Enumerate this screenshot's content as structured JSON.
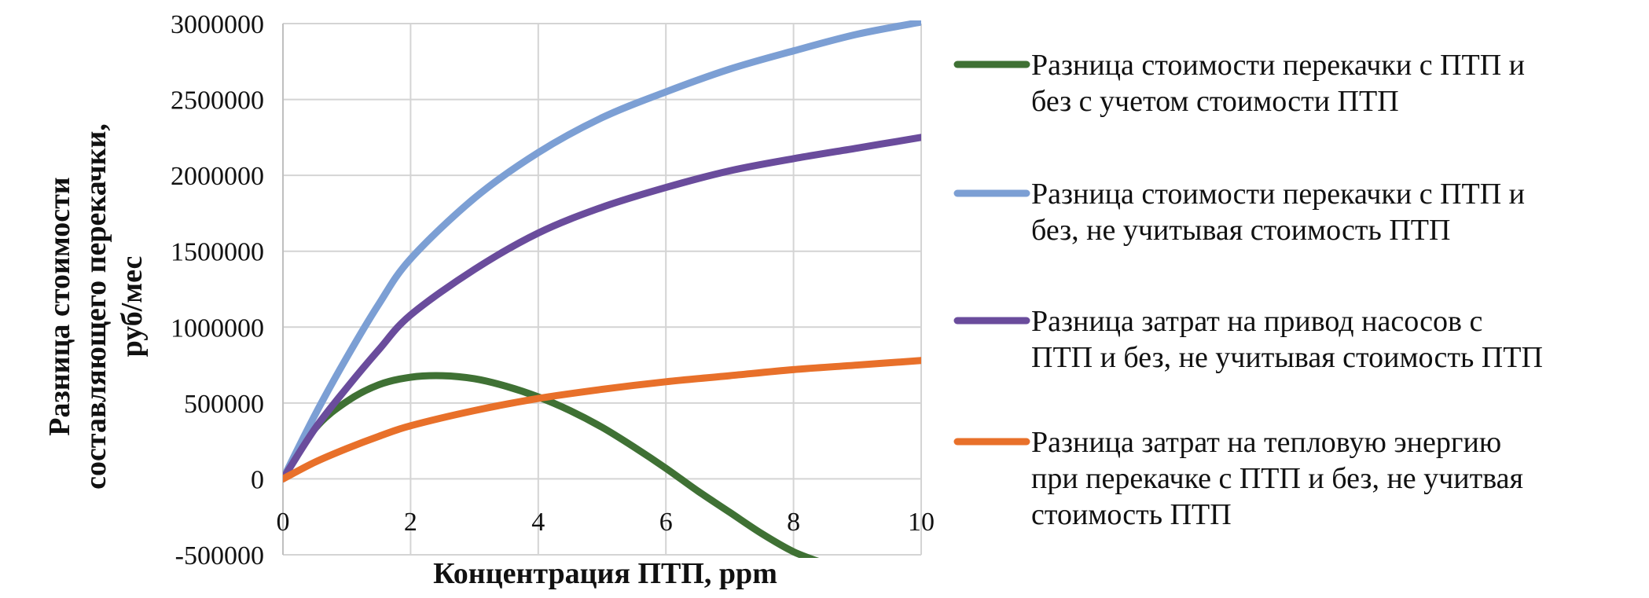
{
  "chart_data": {
    "type": "line",
    "xlabel": "Концентрация ПТП, ppm",
    "ylabel_lines": [
      "Разница стоимости",
      "составляющего перекачки,",
      "руб/мес"
    ],
    "xlim": [
      0,
      10
    ],
    "ylim": [
      -500000,
      3000000
    ],
    "x_ticks": [
      "0",
      "2",
      "4",
      "6",
      "8",
      "10"
    ],
    "y_ticks": [
      "3000000",
      "2500000",
      "2000000",
      "1500000",
      "1000000",
      "500000",
      "0",
      "-500000"
    ],
    "grid": true,
    "legend_position": "right",
    "series": [
      {
        "name": "Разница стоимости перекачки с ПТП и без с учетом стоимости ПТП",
        "legend_lines": [
          "Разница стоимости перекачки с ПТП и",
          "без с учетом стоимости ПТП"
        ],
        "color": "#3f7134",
        "x": [
          0,
          0.5,
          1,
          1.5,
          2,
          2.5,
          3,
          3.5,
          4,
          4.5,
          5,
          5.5,
          6,
          6.5,
          7,
          7.5,
          8,
          8.5
        ],
        "y": [
          0,
          330000,
          510000,
          620000,
          670000,
          680000,
          660000,
          610000,
          540000,
          450000,
          340000,
          210000,
          70000,
          -80000,
          -220000,
          -360000,
          -480000,
          -560000
        ]
      },
      {
        "name": "Разница стоимости перекачки с ПТП и без, не учитывая стоимость ПТП",
        "legend_lines": [
          "Разница стоимости перекачки с ПТП и",
          "без, не учитывая стоимость ПТП"
        ],
        "color": "#7c9fd4",
        "x": [
          0,
          0.5,
          1,
          1.5,
          2,
          3,
          4,
          5,
          6,
          7,
          8,
          9,
          10
        ],
        "y": [
          0,
          420000,
          800000,
          1150000,
          1450000,
          1850000,
          2150000,
          2380000,
          2550000,
          2700000,
          2820000,
          2930000,
          3010000
        ]
      },
      {
        "name": "Разница затрат на привод насосов с ПТП и без, не учитывая стоимость ПТП",
        "legend_lines": [
          "Разница затрат на привод насосов с",
          "ПТП и без, не учитывая стоимость ПТП"
        ],
        "color": "#6a4c9c",
        "x": [
          0,
          0.5,
          1,
          1.5,
          2,
          3,
          4,
          5,
          6,
          7,
          8,
          9,
          10
        ],
        "y": [
          0,
          330000,
          600000,
          850000,
          1080000,
          1380000,
          1620000,
          1790000,
          1920000,
          2030000,
          2110000,
          2180000,
          2250000
        ]
      },
      {
        "name": "Разница затрат на тепловую энергию при перекачке с ПТП и без, не учитвая стоимость ПТП",
        "legend_lines": [
          "Разница затрат на тепловую энергию",
          "при перекачке с ПТП и без, не учитвая",
          "стоимость ПТП"
        ],
        "color": "#e8702a",
        "x": [
          0,
          0.5,
          1,
          1.5,
          2,
          3,
          4,
          5,
          6,
          7,
          8,
          9,
          10
        ],
        "y": [
          0,
          110000,
          200000,
          280000,
          350000,
          450000,
          530000,
          590000,
          640000,
          680000,
          720000,
          750000,
          780000
        ]
      }
    ]
  }
}
